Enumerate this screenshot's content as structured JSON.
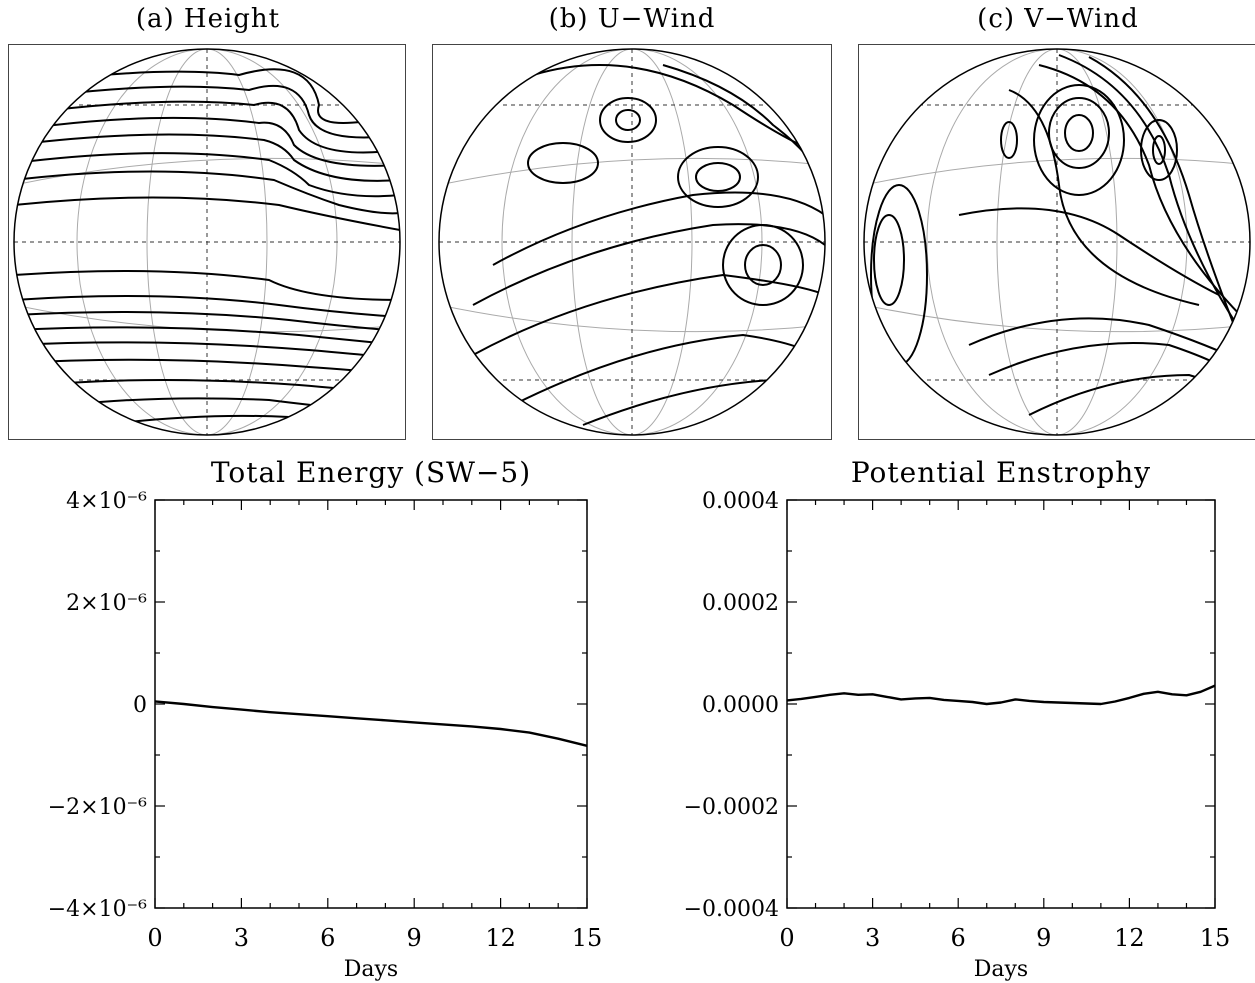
{
  "panels": [
    {
      "title": "(a) Height"
    },
    {
      "title": "(b) U−Wind"
    },
    {
      "title": "(c) V−Wind"
    }
  ],
  "chart_data": [
    {
      "type": "line",
      "title": "Total Energy (SW−5)",
      "xlabel": "Days",
      "ylabel": "",
      "xlim": [
        0,
        15
      ],
      "ylim": [
        -4e-06,
        4e-06
      ],
      "x_ticks": [
        "0",
        "3",
        "6",
        "9",
        "12",
        "15"
      ],
      "y_ticks": [
        "4×10⁻⁶",
        "2×10⁻⁶",
        "0",
        "−2×10⁻⁶",
        "−4×10⁻⁶"
      ],
      "y_tick_values": [
        4e-06,
        2e-06,
        0,
        -2e-06,
        -4e-06
      ],
      "x": [
        0,
        1,
        2,
        3,
        4,
        5,
        6,
        7,
        8,
        9,
        10,
        11,
        12,
        13,
        14,
        15
      ],
      "values": [
        5e-08,
        0.0,
        -6e-08,
        -1.1e-07,
        -1.6e-07,
        -2e-07,
        -2.4e-07,
        -2.8e-07,
        -3.2e-07,
        -3.6e-07,
        -4e-07,
        -4.4e-07,
        -4.9e-07,
        -5.6e-07,
        -6.8e-07,
        -8.2e-07
      ]
    },
    {
      "type": "line",
      "title": "Potential Enstrophy",
      "xlabel": "Days",
      "ylabel": "",
      "xlim": [
        0,
        15
      ],
      "ylim": [
        -0.0004,
        0.0004
      ],
      "x_ticks": [
        "0",
        "3",
        "6",
        "9",
        "12",
        "15"
      ],
      "y_ticks": [
        "0.0004",
        "0.0002",
        "0.0000",
        "−0.0002",
        "−0.0004"
      ],
      "y_tick_values": [
        0.0004,
        0.0002,
        0,
        -0.0002,
        -0.0004
      ],
      "x": [
        0,
        0.5,
        1,
        1.5,
        2,
        2.5,
        3,
        3.5,
        4,
        4.5,
        5,
        5.5,
        6,
        6.5,
        7,
        7.5,
        8,
        8.5,
        9,
        9.5,
        10,
        10.5,
        11,
        11.5,
        12,
        12.5,
        13,
        13.5,
        14,
        14.5,
        15
      ],
      "values": [
        7e-06,
        1e-05,
        1.4e-05,
        1.8e-05,
        2.1e-05,
        1.8e-05,
        1.9e-05,
        1.4e-05,
        9e-06,
        1.1e-05,
        1.2e-05,
        8e-06,
        6e-06,
        4e-06,
        0.0,
        3e-06,
        9e-06,
        6e-06,
        4e-06,
        3e-06,
        2e-06,
        1e-06,
        0.0,
        5e-06,
        1.2e-05,
        2e-05,
        2.4e-05,
        1.9e-05,
        1.7e-05,
        2.4e-05,
        3.6e-05
      ]
    }
  ]
}
